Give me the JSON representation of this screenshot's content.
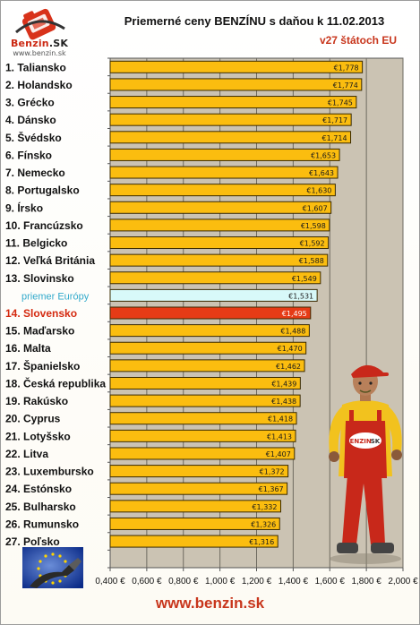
{
  "header": {
    "logo_text": "Benzin",
    "logo_suffix": ".SK",
    "logo_url": "www.benzin.sk",
    "title": "Priemerné ceny BENZÍNU s daňou k 11.02.2013",
    "subtitle": "v27 štátoch EU"
  },
  "footer": {
    "url": "www.benzin.sk"
  },
  "figure": {
    "mascot_badge": "BENZIN",
    "mascot_badge_suffix": "SK"
  },
  "colors": {
    "bar": "#fbbd0f",
    "bar_border": "#3a2a00",
    "bar_slovakia": "#e63b16",
    "bar_europe": "#d8f9f9",
    "europe_label": "#33aacc",
    "slovakia_label": "#d42a10",
    "plot_bg": "#cbc3b3",
    "accent": "#c8361c"
  },
  "chart_data": {
    "type": "bar",
    "orientation": "horizontal",
    "categories": [
      "1. Taliansko",
      "2. Holandsko",
      "3. Grécko",
      "4. Dánsko",
      "5. Švédsko",
      "6. Fínsko",
      "7. Nemecko",
      "8. Portugalsko",
      "9. Írsko",
      "10. Francúzsko",
      "11. Belgicko",
      "12. Veľká Británia",
      "13. Slovinsko",
      "priemer Európy",
      "14. Slovensko",
      "15. Maďarsko",
      "16. Malta",
      "17. Španielsko",
      "18. Česká republika",
      "19. Rakúsko",
      "20. Cyprus",
      "21. Lotyšsko",
      "22. Litva",
      "23. Luxembursko",
      "24. Estónsko",
      "25. Bulharsko",
      "26. Rumunsko",
      "27. Poľsko"
    ],
    "values": [
      1.778,
      1.774,
      1.745,
      1.717,
      1.714,
      1.653,
      1.643,
      1.63,
      1.607,
      1.598,
      1.592,
      1.588,
      1.549,
      1.531,
      1.495,
      1.488,
      1.47,
      1.462,
      1.439,
      1.438,
      1.418,
      1.413,
      1.407,
      1.372,
      1.367,
      1.332,
      1.326,
      1.316
    ],
    "value_labels": [
      "€1,778",
      "€1,774",
      "€1,745",
      "€1,717",
      "€1,714",
      "€1,653",
      "€1,643",
      "€1,630",
      "€1,607",
      "€1,598",
      "€1,592",
      "€1,588",
      "€1,549",
      "€1,531",
      "€1,495",
      "€1,488",
      "€1,470",
      "€1,462",
      "€1,439",
      "€1,438",
      "€1,418",
      "€1,413",
      "€1,407",
      "€1,372",
      "€1,367",
      "€1,332",
      "€1,326",
      "€1,316"
    ],
    "highlight": {
      "europe_average": "priemer Európy",
      "slovakia": "14. Slovensko"
    },
    "xlim": [
      0.4,
      2.0
    ],
    "xticks": [
      0.4,
      0.6,
      0.8,
      1.0,
      1.2,
      1.4,
      1.6,
      1.8,
      2.0
    ],
    "xtick_labels": [
      "0,400 €",
      "0,600 €",
      "0,800 €",
      "1,000 €",
      "1,200 €",
      "1,400 €",
      "1,600 €",
      "1,800 €",
      "2,000 €"
    ],
    "grid": true,
    "legend": "none"
  }
}
